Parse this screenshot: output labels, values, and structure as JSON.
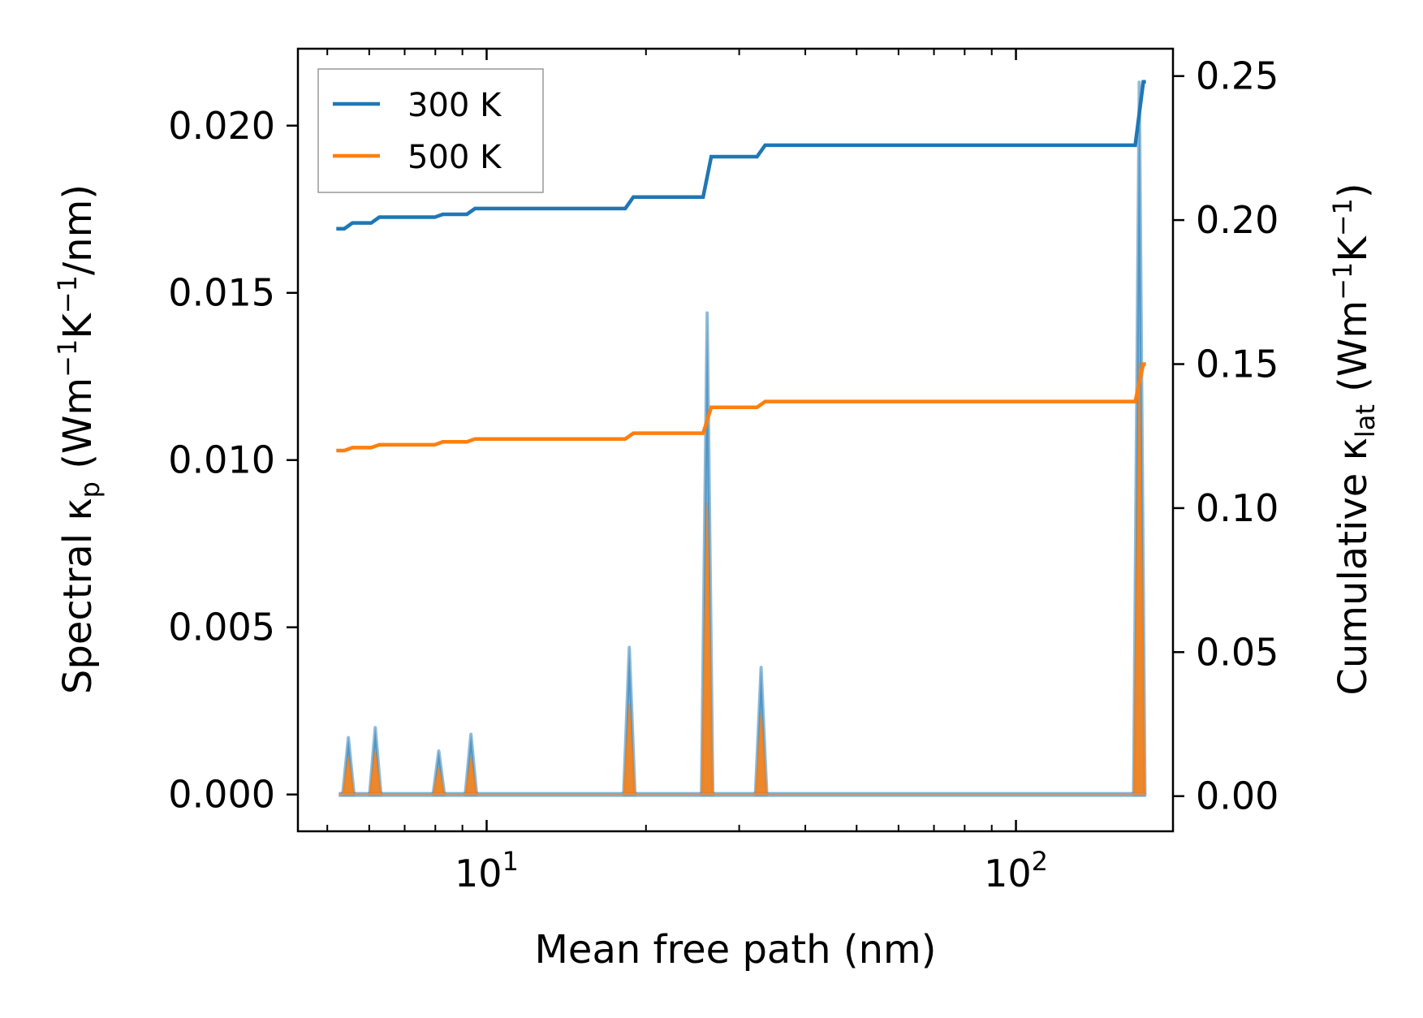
{
  "chart_data": {
    "type": "line",
    "title": "",
    "xlabel": "Mean free path (nm)",
    "ylabel_left": {
      "base": "Spectral κ",
      "sub": "p",
      "units_open": " (Wm",
      "sup1": "−1",
      "mid": "K",
      "sup2": "−1",
      "units_close": "/nm)"
    },
    "ylabel_right": {
      "base": "Cumulative κ",
      "sub": "lat",
      "units_open": " (Wm",
      "sup1": "−1",
      "mid": "K",
      "sup2": "−1",
      "units_close": ")"
    },
    "xscale": "log",
    "xlim": [
      4.4,
      198
    ],
    "ylim_left": [
      -0.0011,
      0.0223
    ],
    "ylim_right": [
      -0.0122,
      0.2595
    ],
    "x_major_ticks": [
      {
        "value": 10,
        "base": "10",
        "exp": "1"
      },
      {
        "value": 100,
        "base": "10",
        "exp": "2"
      }
    ],
    "x_minor_ticks": [
      5,
      6,
      7,
      8,
      9,
      20,
      30,
      40,
      50,
      60,
      70,
      80,
      90
    ],
    "y_left_ticks": [
      {
        "value": 0.0,
        "label": "0.000"
      },
      {
        "value": 0.005,
        "label": "0.005"
      },
      {
        "value": 0.01,
        "label": "0.010"
      },
      {
        "value": 0.015,
        "label": "0.015"
      },
      {
        "value": 0.02,
        "label": "0.020"
      }
    ],
    "y_right_ticks": [
      {
        "value": 0.0,
        "label": "0.00"
      },
      {
        "value": 0.05,
        "label": "0.05"
      },
      {
        "value": 0.1,
        "label": "0.10"
      },
      {
        "value": 0.15,
        "label": "0.15"
      },
      {
        "value": 0.2,
        "label": "0.20"
      },
      {
        "value": 0.25,
        "label": "0.25"
      }
    ],
    "legend": {
      "position": "top-left",
      "entries": [
        "300 K",
        "500 K"
      ]
    },
    "series": [
      {
        "name": "300 K",
        "color": "#1f77b4",
        "spectral_axis": "left",
        "cumulative_axis": "right",
        "peak_x": [
          5.48,
          6.16,
          8.12,
          9.34,
          18.6,
          26.1,
          33.0,
          171.0
        ],
        "peak_y": [
          0.0017,
          0.002,
          0.0013,
          0.0018,
          0.0044,
          0.0144,
          0.0038,
          0.0213
        ],
        "cumulative_x": [
          5.2,
          5.48,
          6.16,
          8.12,
          9.34,
          18.6,
          26.1,
          33.0,
          171.0,
          176.0
        ],
        "cumulative_y": [
          0.197,
          0.199,
          0.201,
          0.202,
          0.204,
          0.208,
          0.222,
          0.226,
          0.248,
          0.248
        ]
      },
      {
        "name": "500 K",
        "color": "#ff7f0e",
        "spectral_axis": "left",
        "cumulative_axis": "right",
        "peak_x": [
          5.48,
          6.16,
          8.12,
          9.34,
          18.6,
          26.1,
          33.0,
          171.0
        ],
        "peak_y": [
          0.0011,
          0.0013,
          0.0008,
          0.0011,
          0.0027,
          0.0087,
          0.0024,
          0.0129
        ],
        "cumulative_x": [
          5.2,
          5.48,
          6.16,
          8.12,
          9.34,
          18.6,
          26.1,
          33.0,
          171.0,
          176.0
        ],
        "cumulative_y": [
          0.12,
          0.121,
          0.122,
          0.123,
          0.124,
          0.126,
          0.135,
          0.137,
          0.15,
          0.15
        ]
      }
    ],
    "grid": false
  }
}
